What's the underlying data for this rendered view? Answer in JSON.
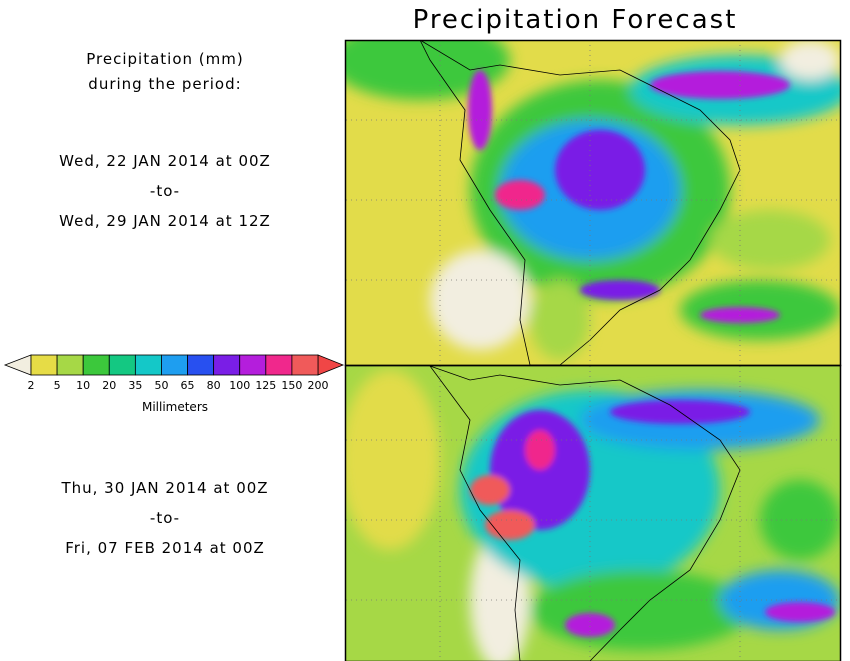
{
  "title": "Precipitation Forecast",
  "period_heading": [
    "Precipitation (mm)",
    "during the period:"
  ],
  "periods": [
    {
      "start": "Wed, 22 JAN 2014 at 00Z",
      "separator": "-to-",
      "end": "Wed, 29 JAN 2014 at 12Z"
    },
    {
      "start": "Thu, 30 JAN 2014 at 00Z",
      "separator": "-to-",
      "end": "Fri, 07 FEB 2014 at 00Z"
    }
  ],
  "colorbar": {
    "label": "Millimeters",
    "ticks": [
      2,
      5,
      10,
      20,
      35,
      50,
      65,
      80,
      100,
      125,
      150,
      200
    ],
    "colors": [
      "#e6dc46",
      "#a6d846",
      "#3cc83c",
      "#14c882",
      "#14c8c8",
      "#1e9ef0",
      "#2850f0",
      "#7a1ee6",
      "#b41edc",
      "#f0288c",
      "#f05a5a"
    ],
    "under_color": "#f2eee0",
    "over_color": "#f04646"
  }
}
